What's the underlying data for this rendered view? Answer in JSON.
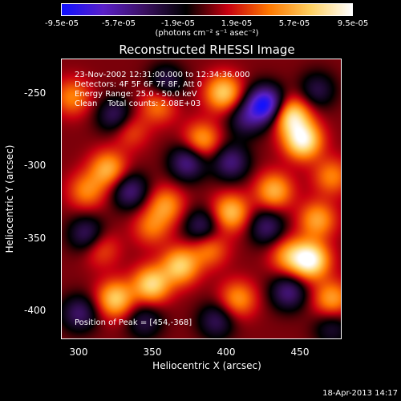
{
  "colorbar": {
    "ticks": [
      "-9.5e-05",
      "-5.7e-05",
      "-1.9e-05",
      "1.9e-05",
      "5.7e-05",
      "9.5e-05"
    ],
    "unit_label": "(photons cm⁻² s⁻¹ asec⁻²)",
    "colors": [
      "#1010ff",
      "#5a20c8",
      "#3a1060",
      "#000000",
      "#c80010",
      "#ff7800",
      "#ffd060",
      "#ffffff"
    ]
  },
  "header": {
    "title": "Reconstructed RHESSI Image"
  },
  "overlay": {
    "line1": "23-Nov-2002 12:31:00.000 to 12:34:36.000",
    "line2": "Detectors: 4F 5F 6F 7F 8F, Att 0",
    "line3": "Energy Range: 25.0 - 50.0 keV",
    "line4": "Clean    Total counts: 2.08E+03",
    "peak": "Position of Peak = [454,-368]"
  },
  "axes": {
    "xlabel": "Heliocentric X (arcsec)",
    "ylabel": "Heliocentric Y (arcsec)",
    "xticks": [
      "300",
      "350",
      "400",
      "450"
    ],
    "yticks": [
      "-250",
      "-300",
      "-350",
      "-400"
    ]
  },
  "footer": {
    "timestamp": "18-Apr-2013 14:17"
  },
  "chart_data": {
    "type": "heatmap",
    "title": "Reconstructed RHESSI Image",
    "xlabel": "Heliocentric X (arcsec)",
    "ylabel": "Heliocentric Y (arcsec)",
    "xlim": [
      283,
      476
    ],
    "ylim": [
      -422,
      -229
    ],
    "zlim": [
      -9.5e-05,
      9.5e-05
    ],
    "blobs": [
      {
        "x": 424,
        "y": -260,
        "v": -9.5e-05
      },
      {
        "x": 450,
        "y": -285,
        "v": 8.5e-05
      },
      {
        "x": 442,
        "y": -268,
        "v": 7.5e-05
      },
      {
        "x": 395,
        "y": -252,
        "v": 6.5e-05
      },
      {
        "x": 380,
        "y": -285,
        "v": 5e-05
      },
      {
        "x": 315,
        "y": -305,
        "v": 5.5e-05
      },
      {
        "x": 300,
        "y": -320,
        "v": 4e-05
      },
      {
        "x": 350,
        "y": -260,
        "v": 4e-05
      },
      {
        "x": 330,
        "y": -278,
        "v": 3e-05
      },
      {
        "x": 355,
        "y": -330,
        "v": 4.5e-05
      },
      {
        "x": 345,
        "y": -345,
        "v": 3.5e-05
      },
      {
        "x": 400,
        "y": -335,
        "v": 6e-05
      },
      {
        "x": 430,
        "y": -320,
        "v": 5.5e-05
      },
      {
        "x": 460,
        "y": -340,
        "v": 5e-05
      },
      {
        "x": 470,
        "y": -310,
        "v": 4e-05
      },
      {
        "x": 320,
        "y": -395,
        "v": 6.5e-05
      },
      {
        "x": 345,
        "y": -385,
        "v": 7e-05
      },
      {
        "x": 365,
        "y": -372,
        "v": 6.5e-05
      },
      {
        "x": 385,
        "y": -360,
        "v": 4e-05
      },
      {
        "x": 405,
        "y": -395,
        "v": 4.5e-05
      },
      {
        "x": 440,
        "y": -365,
        "v": 4.5e-05
      },
      {
        "x": 455,
        "y": -368,
        "v": 9e-05
      },
      {
        "x": 470,
        "y": -395,
        "v": 5e-05
      },
      {
        "x": 310,
        "y": -360,
        "v": 3e-05
      },
      {
        "x": 290,
        "y": -255,
        "v": 4e-05
      },
      {
        "x": 300,
        "y": -350,
        "v": -4.5e-05
      },
      {
        "x": 330,
        "y": -320,
        "v": -5e-05
      },
      {
        "x": 320,
        "y": -268,
        "v": -4.5e-05
      },
      {
        "x": 370,
        "y": -300,
        "v": -5.5e-05
      },
      {
        "x": 355,
        "y": -245,
        "v": -4e-05
      },
      {
        "x": 400,
        "y": -300,
        "v": -5e-05
      },
      {
        "x": 410,
        "y": -270,
        "v": -4e-05
      },
      {
        "x": 380,
        "y": -345,
        "v": -4.5e-05
      },
      {
        "x": 425,
        "y": -345,
        "v": -4.5e-05
      },
      {
        "x": 440,
        "y": -390,
        "v": -5e-05
      },
      {
        "x": 390,
        "y": -410,
        "v": -4e-05
      },
      {
        "x": 340,
        "y": -410,
        "v": -3.5e-05
      },
      {
        "x": 295,
        "y": -405,
        "v": -4.5e-05
      },
      {
        "x": 460,
        "y": -250,
        "v": -3.5e-05
      },
      {
        "x": 470,
        "y": -415,
        "v": -3e-05
      }
    ]
  }
}
